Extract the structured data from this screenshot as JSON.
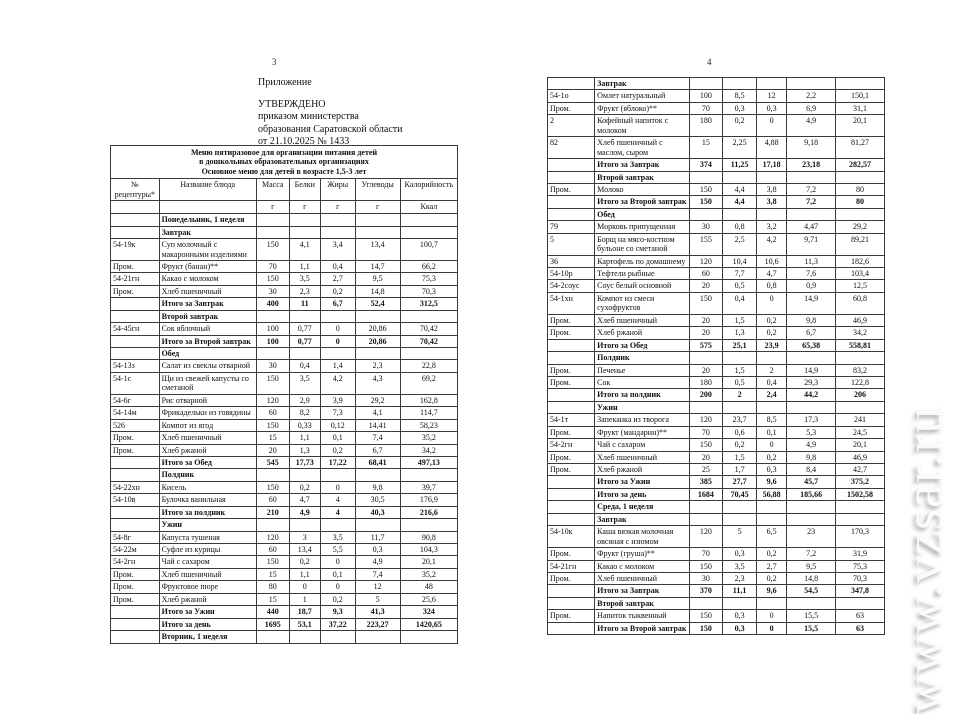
{
  "watermark": "www.vzsar.ru",
  "pages": {
    "left": {
      "page_number": "3",
      "heading": {
        "line1": "Приложение",
        "line2": "УТВЕРЖДЕНО",
        "line3": "приказом министерства",
        "line4": "образования Саратовской области",
        "line5": "от 21.10.2025 № 1433"
      },
      "table": {
        "title_lines": [
          "Меню пятиразовое для организации питания детей",
          "в дошкольных образовательных организациях",
          "Основное меню для детей в возрасте 1,5-3 лет"
        ],
        "columns": [
          "№ рецептуры*",
          "Название блюда",
          "Масса",
          "Белки",
          "Жиры",
          "Углеводы",
          "Калорийность"
        ],
        "units": [
          "",
          "",
          "г",
          "г",
          "г",
          "г",
          "Ккал"
        ],
        "rows": [
          [
            "",
            "Понедельник, 1 неделя",
            "",
            "",
            "",
            "",
            "",
            "s"
          ],
          [
            "",
            "Завтрак",
            "",
            "",
            "",
            "",
            "",
            "s"
          ],
          [
            "54-19к",
            "Суп молочный с макаронными изделиями",
            "150",
            "4,1",
            "3,4",
            "13,4",
            "100,7",
            "i"
          ],
          [
            "Пром.",
            "Фрукт (банан)**",
            "70",
            "1,1",
            "0,4",
            "14,7",
            "66,2",
            "i"
          ],
          [
            "54-21гн",
            "Какао с молоком",
            "150",
            "3,5",
            "2,7",
            "9,5",
            "75,3",
            "i"
          ],
          [
            "Пром.",
            "Хлеб пшеничный",
            "30",
            "2,3",
            "0,2",
            "14,8",
            "70,3",
            "i"
          ],
          [
            "",
            "Итого за Завтрак",
            "400",
            "11",
            "6,7",
            "52,4",
            "312,5",
            "t"
          ],
          [
            "",
            "Второй завтрак",
            "",
            "",
            "",
            "",
            "",
            "s"
          ],
          [
            "54-45гн",
            "Сок яблочный",
            "100",
            "0,77",
            "0",
            "20,86",
            "70,42",
            "i"
          ],
          [
            "",
            "Итого за Второй завтрак",
            "100",
            "0,77",
            "0",
            "20,86",
            "70,42",
            "t"
          ],
          [
            "",
            "Обед",
            "",
            "",
            "",
            "",
            "",
            "s"
          ],
          [
            "54-13з",
            "Салат из свеклы отварной",
            "30",
            "0,4",
            "1,4",
            "2,3",
            "22,8",
            "i"
          ],
          [
            "54-1с",
            "Щи из свежей капусты со сметаной",
            "150",
            "3,5",
            "4,2",
            "4,3",
            "69,2",
            "i"
          ],
          [
            "54-6г",
            "Рис отварной",
            "120",
            "2,9",
            "3,9",
            "29,2",
            "162,8",
            "i"
          ],
          [
            "54-14м",
            "Фрикадельки из говядины",
            "60",
            "8,2",
            "7,3",
            "4,1",
            "114,7",
            "i"
          ],
          [
            "526",
            "Компот из ягод",
            "150",
            "0,33",
            "0,12",
            "14,41",
            "58,23",
            "i"
          ],
          [
            "Пром.",
            "Хлеб пшеничный",
            "15",
            "1,1",
            "0,1",
            "7,4",
            "35,2",
            "i"
          ],
          [
            "Пром.",
            "Хлеб ржаной",
            "20",
            "1,3",
            "0,2",
            "6,7",
            "34,2",
            "i"
          ],
          [
            "",
            "Итого за Обед",
            "545",
            "17,73",
            "17,22",
            "68,41",
            "497,13",
            "t"
          ],
          [
            "",
            "Полдник",
            "",
            "",
            "",
            "",
            "",
            "s"
          ],
          [
            "54-22хн",
            "Кисель",
            "150",
            "0,2",
            "0",
            "9,8",
            "39,7",
            "i"
          ],
          [
            "54-10в",
            "Булочка ванильная",
            "60",
            "4,7",
            "4",
            "30,5",
            "176,9",
            "i"
          ],
          [
            "",
            "Итого за полдник",
            "210",
            "4,9",
            "4",
            "40,3",
            "216,6",
            "t"
          ],
          [
            "",
            "Ужин",
            "",
            "",
            "",
            "",
            "",
            "s"
          ],
          [
            "54-8г",
            "Капуста тушеная",
            "120",
            "3",
            "3,5",
            "11,7",
            "90,8",
            "i"
          ],
          [
            "54-22м",
            "Суфле из курицы",
            "60",
            "13,4",
            "5,5",
            "0,3",
            "104,3",
            "i"
          ],
          [
            "54-2гн",
            "Чай с сахаром",
            "150",
            "0,2",
            "0",
            "4,9",
            "20,1",
            "i"
          ],
          [
            "Пром.",
            "Хлеб пшеничный",
            "15",
            "1,1",
            "0,1",
            "7,4",
            "35,2",
            "i"
          ],
          [
            "Пром.",
            "Фруктовое пюре",
            "80",
            "0",
            "0",
            "12",
            "48",
            "i"
          ],
          [
            "Пром.",
            "Хлеб ржаной",
            "15",
            "1",
            "0,2",
            "5",
            "25,6",
            "i"
          ],
          [
            "",
            "Итого за Ужин",
            "440",
            "18,7",
            "9,3",
            "41,3",
            "324",
            "t"
          ],
          [
            "",
            "Итого за день",
            "1695",
            "53,1",
            "37,22",
            "223,27",
            "1420,65",
            "t"
          ],
          [
            "",
            "Вторник, 1 неделя",
            "",
            "",
            "",
            "",
            "",
            "s"
          ]
        ]
      }
    },
    "right": {
      "page_number": "4",
      "table": {
        "rows": [
          [
            "",
            "Завтрак",
            "",
            "",
            "",
            "",
            "",
            "s"
          ],
          [
            "54-1о",
            "Омлет натуральный",
            "100",
            "8,5",
            "12",
            "2,2",
            "150,1",
            "i"
          ],
          [
            "Пром.",
            "Фрукт (яблоко)**",
            "70",
            "0,3",
            "0,3",
            "6,9",
            "31,1",
            "i"
          ],
          [
            "2",
            "Кофейный напиток с молоком",
            "180",
            "0,2",
            "0",
            "4,9",
            "20,1",
            "i"
          ],
          [
            "82",
            "Хлеб пшеничный с маслом, сыром",
            "15",
            "2,25",
            "4,88",
            "9,18",
            "81,27",
            "i"
          ],
          [
            "",
            "Итого за Завтрак",
            "374",
            "11,25",
            "17,18",
            "23,18",
            "282,57",
            "t"
          ],
          [
            "",
            "Второй завтрак",
            "",
            "",
            "",
            "",
            "",
            "s"
          ],
          [
            "Пром.",
            "Молоко",
            "150",
            "4,4",
            "3,8",
            "7,2",
            "80",
            "i"
          ],
          [
            "",
            "Итого за Второй завтрак",
            "150",
            "4,4",
            "3,8",
            "7,2",
            "80",
            "t"
          ],
          [
            "",
            "Обед",
            "",
            "",
            "",
            "",
            "",
            "s"
          ],
          [
            "79",
            "Морковь припущенная",
            "30",
            "0,8",
            "3,2",
            "4,47",
            "29,2",
            "i"
          ],
          [
            "5",
            "Борщ на мясо-костном бульоне со сметаной",
            "155",
            "2,5",
            "4,2",
            "9,71",
            "89,21",
            "i"
          ],
          [
            "36",
            "Картофель по домашнему",
            "120",
            "10,4",
            "10,6",
            "11,3",
            "182,6",
            "i"
          ],
          [
            "54-10р",
            "Тефтели рыбные",
            "60",
            "7,7",
            "4,7",
            "7,6",
            "103,4",
            "i"
          ],
          [
            "54-2соус",
            "Соус белый основной",
            "20",
            "0,5",
            "0,8",
            "0,9",
            "12,5",
            "i"
          ],
          [
            "54-1хн",
            "Компот из смеси сухофруктов",
            "150",
            "0,4",
            "0",
            "14,9",
            "60,8",
            "i"
          ],
          [
            "Пром.",
            "Хлеб пшеничный",
            "20",
            "1,5",
            "0,2",
            "9,8",
            "46,9",
            "i"
          ],
          [
            "Пром.",
            "Хлеб ржаной",
            "20",
            "1,3",
            "0,2",
            "6,7",
            "34,2",
            "i"
          ],
          [
            "",
            "Итого за Обед",
            "575",
            "25,1",
            "23,9",
            "65,38",
            "558,81",
            "t"
          ],
          [
            "",
            "Полдник",
            "",
            "",
            "",
            "",
            "",
            "s"
          ],
          [
            "Пром.",
            "Печенье",
            "20",
            "1,5",
            "2",
            "14,9",
            "83,2",
            "i"
          ],
          [
            "Пром.",
            "Сок",
            "180",
            "0,5",
            "0,4",
            "29,3",
            "122,8",
            "i"
          ],
          [
            "",
            "Итого за полдник",
            "200",
            "2",
            "2,4",
            "44,2",
            "206",
            "t"
          ],
          [
            "",
            "Ужин",
            "",
            "",
            "",
            "",
            "",
            "s"
          ],
          [
            "54-1т",
            "Запеканка из творога",
            "120",
            "23,7",
            "8,5",
            "17,3",
            "241",
            "i"
          ],
          [
            "Пром.",
            "Фрукт (мандарин)**",
            "70",
            "0,6",
            "0,1",
            "5,3",
            "24,5",
            "i"
          ],
          [
            "54-2гн",
            "Чай с сахаром",
            "150",
            "0,2",
            "0",
            "4,9",
            "20,1",
            "i"
          ],
          [
            "Пром.",
            "Хлеб пшеничный",
            "20",
            "1,5",
            "0,2",
            "9,8",
            "46,9",
            "i"
          ],
          [
            "Пром.",
            "Хлеб ржаной",
            "25",
            "1,7",
            "0,3",
            "8,4",
            "42,7",
            "i"
          ],
          [
            "",
            "Итого за Ужин",
            "385",
            "27,7",
            "9,6",
            "45,7",
            "375,2",
            "t"
          ],
          [
            "",
            "Итого за день",
            "1684",
            "70,45",
            "56,88",
            "185,66",
            "1502,58",
            "t"
          ],
          [
            "",
            "Среда, 1 неделя",
            "",
            "",
            "",
            "",
            "",
            "s"
          ],
          [
            "",
            "Завтрак",
            "",
            "",
            "",
            "",
            "",
            "s"
          ],
          [
            "54-10к",
            "Каша вязкая молочная овсяная с изюмом",
            "120",
            "5",
            "6,5",
            "23",
            "170,3",
            "i"
          ],
          [
            "Пром.",
            "Фрукт (груша)**",
            "70",
            "0,3",
            "0,2",
            "7,2",
            "31,9",
            "i"
          ],
          [
            "54-21гн",
            "Какао с молоком",
            "150",
            "3,5",
            "2,7",
            "9,5",
            "75,3",
            "i"
          ],
          [
            "Пром.",
            "Хлеб пшеничный",
            "30",
            "2,3",
            "0,2",
            "14,8",
            "70,3",
            "i"
          ],
          [
            "",
            "Итого за Завтрак",
            "370",
            "11,1",
            "9,6",
            "54,5",
            "347,8",
            "t"
          ],
          [
            "",
            "Второй завтрак",
            "",
            "",
            "",
            "",
            "",
            "s"
          ],
          [
            "Пром.",
            "Напиток тыквенный",
            "150",
            "0,3",
            "0",
            "15,5",
            "63",
            "i"
          ],
          [
            "",
            "Итого за Второй завтрак",
            "150",
            "0,3",
            "0",
            "15,5",
            "63",
            "t"
          ]
        ]
      }
    }
  }
}
